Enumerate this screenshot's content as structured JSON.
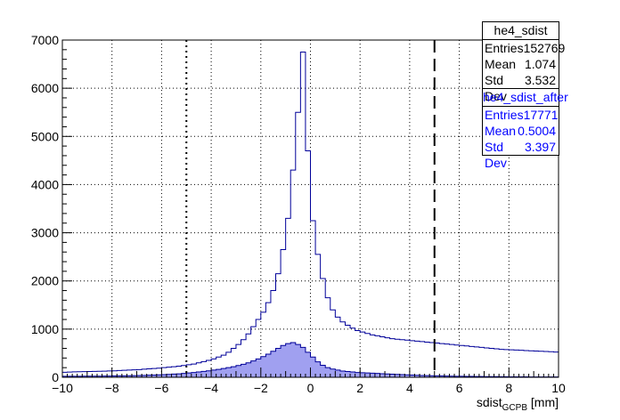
{
  "chart_data": {
    "type": "histogram",
    "xlabel_main": "sdist",
    "xlabel_sub": "GCPB",
    "xlabel_unit": " [mm]",
    "ylabel": "",
    "xlim": [
      -10,
      10
    ],
    "ylim": [
      0,
      7000
    ],
    "bin_width": 0.2,
    "x_ticks": [
      "−10",
      "−8",
      "−6",
      "−4",
      "−2",
      "0",
      "2",
      "4",
      "6",
      "8",
      "10"
    ],
    "y_ticks": [
      "0",
      "1000",
      "2000",
      "3000",
      "4000",
      "5000",
      "6000",
      "7000"
    ],
    "grid": true,
    "series": [
      {
        "name": "he4_sdist",
        "style": "line",
        "color": "#000099",
        "values": [
          105,
          108,
          112,
          115,
          118,
          120,
          122,
          125,
          128,
          132,
          135,
          140,
          145,
          150,
          155,
          160,
          168,
          175,
          182,
          190,
          200,
          210,
          220,
          232,
          245,
          260,
          275,
          300,
          325,
          350,
          380,
          420,
          460,
          520,
          600,
          680,
          780,
          900,
          1050,
          1200,
          1350,
          1550,
          1800,
          2150,
          2650,
          3300,
          4300,
          5500,
          6750,
          4700,
          3250,
          2550,
          2050,
          1650,
          1400,
          1250,
          1150,
          1080,
          1020,
          970,
          940,
          910,
          880,
          860,
          840,
          820,
          800,
          790,
          780,
          770,
          760,
          750,
          740,
          730,
          720,
          710,
          700,
          690,
          680,
          670,
          660,
          650,
          640,
          630,
          620,
          610,
          600,
          590,
          580,
          575,
          570,
          565,
          560,
          555,
          550,
          545,
          540,
          535,
          530,
          525
        ]
      },
      {
        "name": "he4_sdist_after",
        "style": "filled",
        "color": "#000099",
        "fill": "#a0a0f0",
        "values": [
          20,
          20,
          21,
          21,
          22,
          22,
          23,
          24,
          25,
          26,
          27,
          29,
          31,
          33,
          35,
          37,
          40,
          43,
          46,
          50,
          55,
          60,
          66,
          72,
          80,
          90,
          100,
          110,
          122,
          135,
          150,
          165,
          182,
          200,
          220,
          245,
          270,
          300,
          340,
          380,
          430,
          480,
          540,
          600,
          660,
          700,
          720,
          680,
          620,
          520,
          420,
          320,
          250,
          200,
          170,
          150,
          130,
          120,
          110,
          100,
          95,
          90,
          85,
          80,
          75,
          70,
          65,
          60,
          55,
          50,
          46,
          42,
          38,
          35,
          32,
          29,
          27,
          25,
          23,
          21,
          20,
          19,
          18,
          17,
          16,
          15,
          14,
          13,
          12,
          11,
          10,
          10,
          9,
          9,
          8,
          8,
          7,
          7,
          6,
          6
        ]
      }
    ],
    "reference_lines": [
      {
        "x": -5,
        "style": "dotted"
      },
      {
        "x": 5,
        "style": "dashed"
      }
    ]
  },
  "stats_main": {
    "title": "he4_sdist",
    "rows": [
      {
        "label": "Entries",
        "value": "152769"
      },
      {
        "label": "Mean",
        "value": "1.074"
      },
      {
        "label": "Std Dev",
        "value": "3.532"
      }
    ]
  },
  "stats_after": {
    "title": "he4_sdist_after",
    "color": "#0000ff",
    "rows": [
      {
        "label": "Entries",
        "value": "17771"
      },
      {
        "label": "Mean",
        "value": "0.5004"
      },
      {
        "label": "Std Dev",
        "value": "3.397"
      }
    ]
  }
}
